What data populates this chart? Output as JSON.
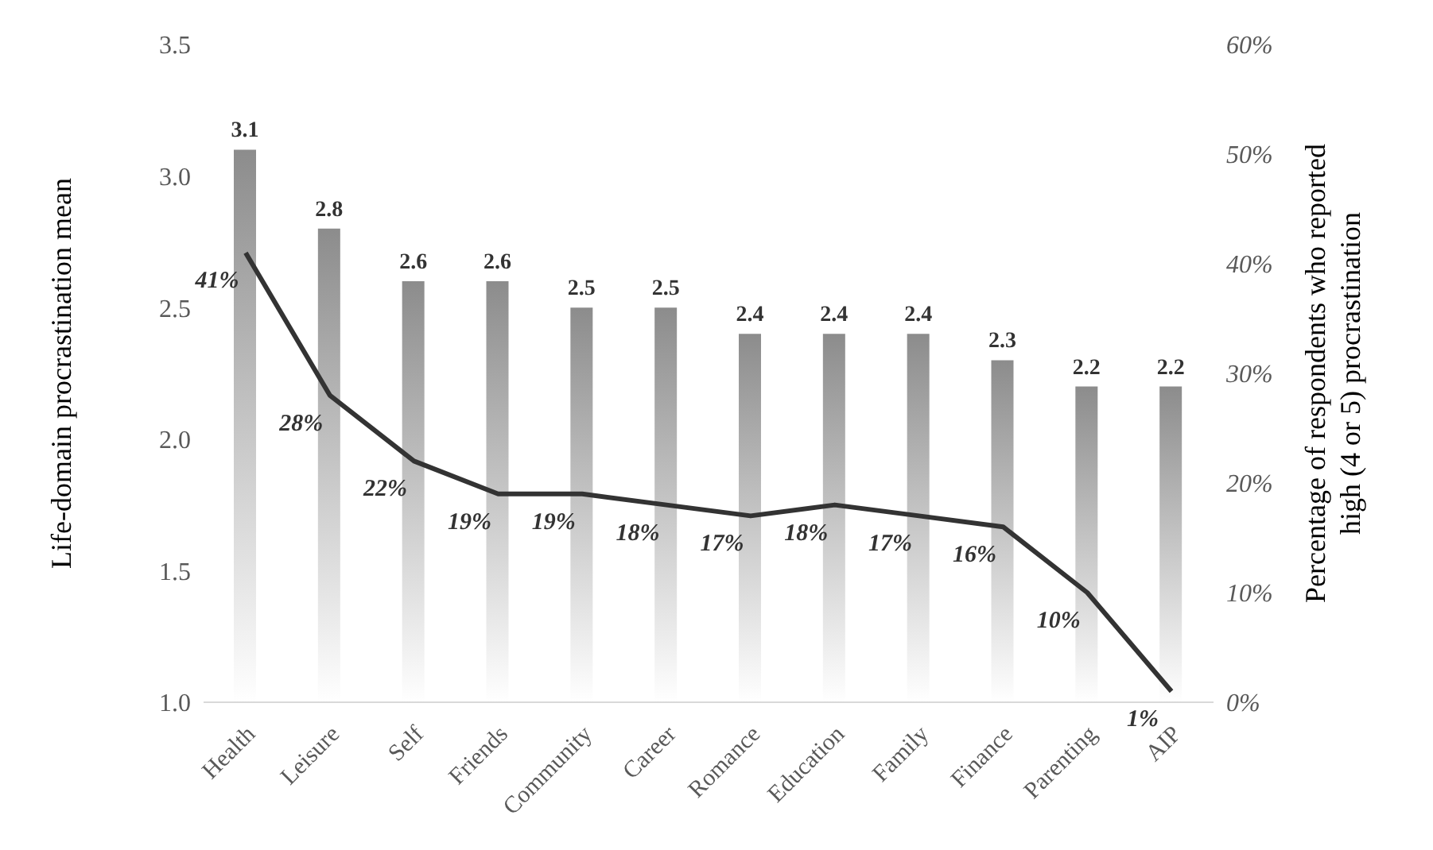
{
  "chart_data": {
    "type": "bar",
    "ylabel": "Life-domain procrastination mean",
    "y2label": "Percentage of respondents who reported high (4 or 5) procrastination",
    "categories": [
      "Health",
      "Leisure",
      "Self",
      "Friends",
      "Community",
      "Career",
      "Romance",
      "Education",
      "Family",
      "Finance",
      "Parenting",
      "AIP"
    ],
    "series": [
      {
        "color": "#8c8c8c",
        "values": [
          3.1,
          2.8,
          2.6,
          2.6,
          2.5,
          2.5,
          2.4,
          2.4,
          2.4,
          2.3,
          2.2,
          2.2
        ],
        "value_labels": [
          "3.1",
          "2.8",
          "2.6",
          "2.6",
          "2.5",
          "2.5",
          "2.4",
          "2.4",
          "2.4",
          "2.3",
          "2.2",
          "2.2"
        ]
      },
      {
        "type": "line",
        "axis": "y2",
        "color": "#333333",
        "values": [
          41,
          28,
          22,
          19,
          19,
          18,
          17,
          18,
          17,
          16,
          10,
          1
        ],
        "value_labels": [
          "41%",
          "28%",
          "22%",
          "19%",
          "19%",
          "18%",
          "17%",
          "18%",
          "17%",
          "16%",
          "10%",
          "1%"
        ]
      }
    ],
    "ylim": [
      1,
      3.5
    ],
    "yticks": [
      {
        "value": 1,
        "label": "1.0"
      },
      {
        "value": 1.5,
        "label": "1.5"
      },
      {
        "value": 2,
        "label": "2.0"
      },
      {
        "value": 2.5,
        "label": "2.5"
      },
      {
        "value": 3,
        "label": "3.0"
      },
      {
        "value": 3.5,
        "label": "3.5"
      }
    ],
    "y2lim": [
      0,
      60
    ],
    "y2ticks": [
      {
        "value": 0,
        "label": "0%"
      },
      {
        "value": 10,
        "label": "10%"
      },
      {
        "value": 20,
        "label": "20%"
      },
      {
        "value": 30,
        "label": "30%"
      },
      {
        "value": 40,
        "label": "40%"
      },
      {
        "value": 50,
        "label": "50%"
      },
      {
        "value": 60,
        "label": "60%"
      }
    ],
    "grid": false,
    "legend": false,
    "marker": "none",
    "line_style": "solid"
  }
}
